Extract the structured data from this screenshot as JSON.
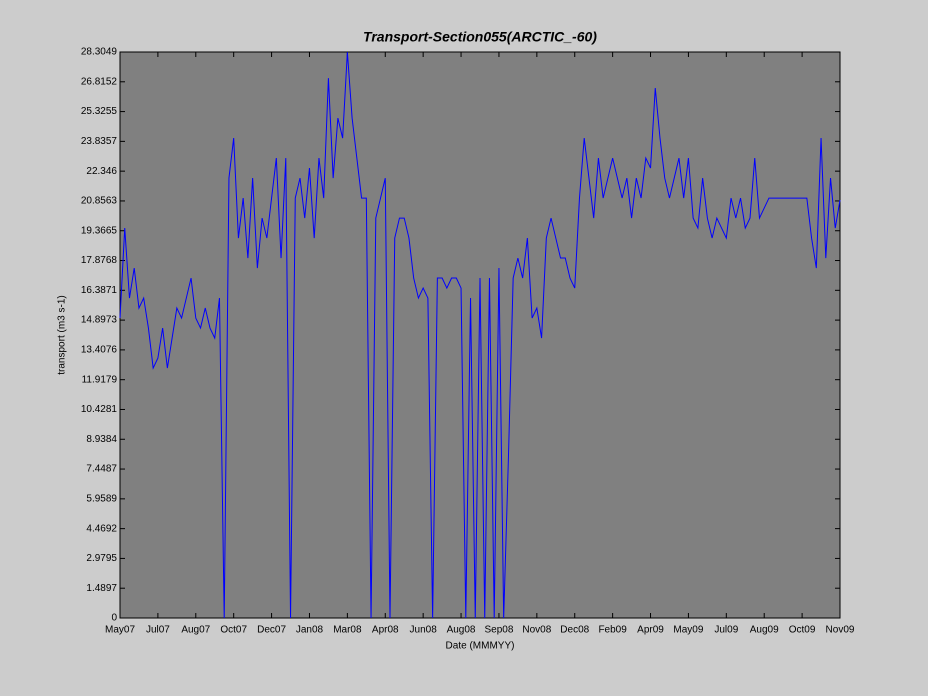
{
  "chart_data": {
    "type": "line",
    "title": "Transport-Section055(ARCTIC_-60)",
    "xlabel": "Date (MMMYY)",
    "ylabel": "transport (m3 s-1)",
    "categories": [
      "May07",
      null,
      null,
      null,
      null,
      null,
      null,
      null,
      "Jul07",
      null,
      null,
      null,
      null,
      null,
      null,
      null,
      "Aug07",
      null,
      null,
      null,
      null,
      null,
      null,
      null,
      "Oct07",
      null,
      null,
      null,
      null,
      null,
      null,
      null,
      "Dec07",
      null,
      null,
      null,
      null,
      null,
      null,
      null,
      "Jan08",
      null,
      null,
      null,
      null,
      null,
      null,
      null,
      "Mar08",
      null,
      null,
      null,
      null,
      null,
      null,
      null,
      "Apr08",
      null,
      null,
      null,
      null,
      null,
      null,
      null,
      "Jun08",
      null,
      null,
      null,
      null,
      null,
      null,
      null,
      "Aug08",
      null,
      null,
      null,
      null,
      null,
      null,
      null,
      "Sep08",
      null,
      null,
      null,
      null,
      null,
      null,
      null,
      "Nov08",
      null,
      null,
      null,
      null,
      null,
      null,
      null,
      "Dec08",
      null,
      null,
      null,
      null,
      null,
      null,
      null,
      "Feb09",
      null,
      null,
      null,
      null,
      null,
      null,
      null,
      "Apr09",
      null,
      null,
      null,
      null,
      null,
      null,
      null,
      "May09",
      null,
      null,
      null,
      null,
      null,
      null,
      null,
      "Jul09",
      null,
      null,
      null,
      null,
      null,
      null,
      null,
      "Aug09",
      null,
      null,
      null,
      null,
      null,
      null,
      null,
      "Oct09",
      null,
      null,
      null,
      null,
      null,
      null,
      null,
      "Nov09"
    ],
    "series": [
      {
        "name": "transport",
        "color": "#0000ff",
        "values": [
          15,
          19.5,
          16,
          17.5,
          15.5,
          16,
          14.5,
          12.5,
          13,
          14.5,
          12.5,
          14,
          15.5,
          15,
          16,
          17,
          15,
          14.5,
          15.5,
          14.5,
          14,
          16,
          0,
          22,
          24,
          19,
          21,
          18,
          22,
          17.5,
          20,
          19,
          21,
          23,
          18,
          23,
          0,
          21,
          22,
          20,
          22.5,
          19,
          23,
          21,
          27,
          22,
          25,
          24,
          28.3,
          25,
          23,
          21,
          21,
          0,
          20,
          21,
          22,
          0,
          19,
          20,
          20,
          19,
          17,
          16,
          16.5,
          16,
          0,
          17,
          17,
          16.5,
          17,
          17,
          16.5,
          0,
          16,
          0,
          17,
          0,
          17,
          0,
          17.5,
          0,
          8,
          17,
          18,
          17,
          19,
          15,
          15.5,
          14,
          19,
          20,
          19,
          18,
          18,
          17,
          16.5,
          21,
          24,
          22,
          20,
          23,
          21,
          22,
          23,
          22,
          21,
          22,
          20,
          22,
          21,
          23,
          22.5,
          26.5,
          24,
          22,
          21,
          22,
          23,
          21,
          23,
          20,
          19.5,
          22,
          20,
          19,
          20,
          19.5,
          19,
          21,
          20,
          21,
          19.5,
          20,
          23,
          20,
          20.5,
          21,
          21,
          21,
          21,
          21,
          21,
          21,
          21,
          21,
          19,
          17.5,
          24,
          18,
          22,
          19.5,
          20.9
        ]
      }
    ],
    "ylim": [
      0,
      28.3049
    ],
    "yticks": [
      0,
      1.4897,
      2.9795,
      4.4692,
      5.9589,
      7.4487,
      8.9384,
      10.4281,
      11.9179,
      13.4076,
      14.8973,
      16.3871,
      17.8768,
      19.3665,
      20.8563,
      22.346,
      23.8357,
      25.3255,
      26.8152,
      28.3049
    ],
    "grid": false
  }
}
